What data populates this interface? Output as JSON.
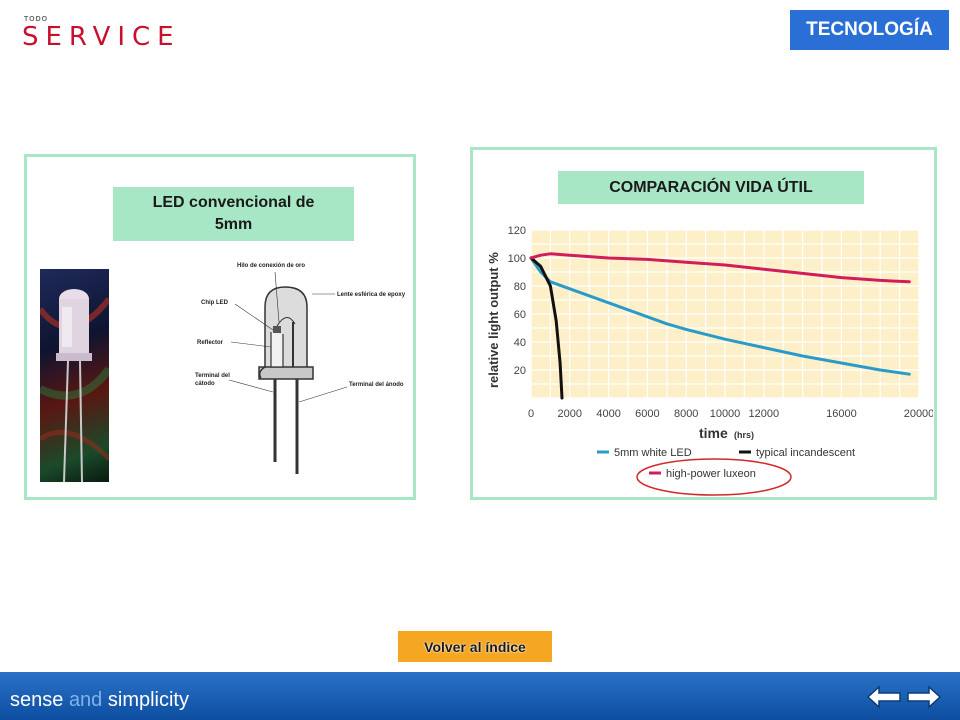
{
  "header": {
    "logo_small": "TODO",
    "logo_brand": "SERVICE",
    "section_tag": "TECNOLOGÍA"
  },
  "left_panel": {
    "label_line1": "LED convencional de",
    "label_line2": "5mm",
    "diagram_labels": {
      "gold_wire": "Hilo de conexión de oro",
      "epoxy_lens": "Lente esférica de epoxy",
      "chip": "Chip LED",
      "reflector": "Reflector",
      "cathode_line1": "Terminal del",
      "cathode_line2": "cátodo",
      "anode": "Terminal del ánodo"
    }
  },
  "right_panel": {
    "label": "COMPARACIÓN VIDA ÚTIL"
  },
  "chart_data": {
    "type": "line",
    "xlabel": "time",
    "xlabel_unit": "(hrs)",
    "ylabel": "relative light output %",
    "xlim": [
      0,
      20000
    ],
    "ylim": [
      0,
      120
    ],
    "x_ticks": [
      0,
      2000,
      4000,
      6000,
      8000,
      10000,
      12000,
      16000,
      20000
    ],
    "x_tick_labels": [
      "0",
      "2000",
      "4000",
      "6000",
      "8000",
      "10000",
      "12000",
      "16000",
      "20000"
    ],
    "y_ticks": [
      20,
      40,
      60,
      80,
      100,
      120
    ],
    "grid": true,
    "legend_position": "bottom",
    "series": [
      {
        "name": "5mm white LED",
        "color": "#2a9bc8",
        "x": [
          0,
          500,
          1000,
          2000,
          3000,
          4000,
          5000,
          6000,
          7000,
          8000,
          10000,
          12000,
          14000,
          16000,
          18000,
          19500
        ],
        "y": [
          100,
          90,
          83,
          78,
          73,
          68,
          63,
          58,
          53,
          49,
          42,
          36,
          30,
          25,
          20,
          17
        ]
      },
      {
        "name": "typical incandescent",
        "color": "#111111",
        "x": [
          0,
          500,
          1000,
          1300,
          1500,
          1600
        ],
        "y": [
          100,
          94,
          80,
          55,
          25,
          0
        ]
      },
      {
        "name": "high-power luxeon",
        "color": "#d01e5a",
        "x": [
          0,
          500,
          1000,
          2000,
          4000,
          6000,
          8000,
          10000,
          12000,
          14000,
          16000,
          18000,
          19500
        ],
        "y": [
          100,
          102,
          103,
          102,
          100,
          99,
          97,
          95,
          92,
          89,
          86,
          84,
          83
        ]
      }
    ]
  },
  "footer": {
    "back_to_index": "Volver al índice",
    "tagline_part1": "sense ",
    "tagline_and": "and",
    "tagline_part2": " simplicity"
  },
  "colors": {
    "panel_border": "#a8e7c5",
    "tag_bg": "#2a6fd6",
    "chart_bg": "#fdf0c9",
    "button_bg": "#f5a623",
    "highlight_ellipse": "#d22a2a"
  }
}
